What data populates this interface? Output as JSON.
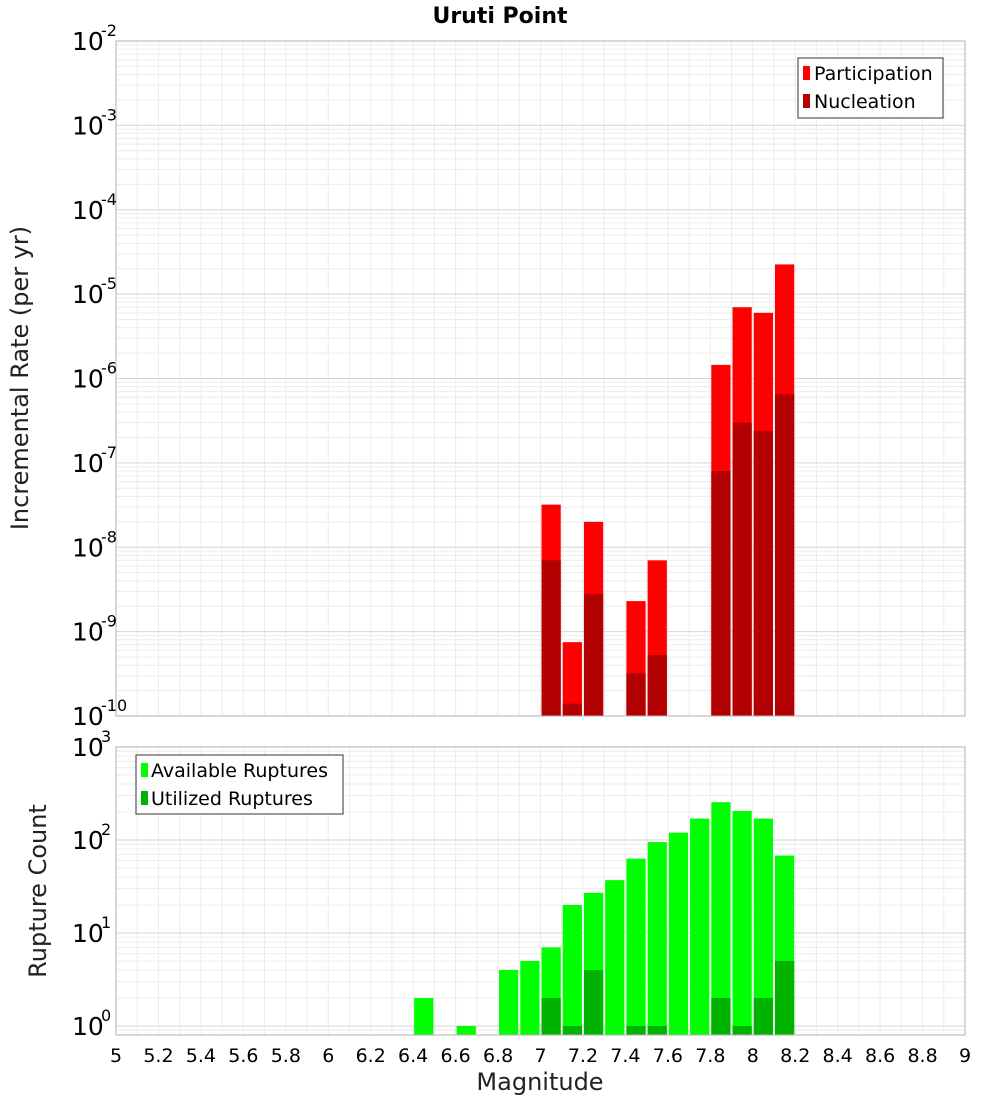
{
  "chart_data": [
    {
      "type": "bar",
      "title": "Uruti Point",
      "xlabel": "",
      "ylabel": "Incremental Rate (per yr)",
      "yscale": "log",
      "ylim": [
        1e-10,
        0.01
      ],
      "xlim": [
        5,
        9
      ],
      "grid": true,
      "legend_position": "top-right",
      "yticks": [
        {
          "base": "10",
          "exp": "-10"
        },
        {
          "base": "10",
          "exp": "-9"
        },
        {
          "base": "10",
          "exp": "-8"
        },
        {
          "base": "10",
          "exp": "-7"
        },
        {
          "base": "10",
          "exp": "-6"
        },
        {
          "base": "10",
          "exp": "-5"
        },
        {
          "base": "10",
          "exp": "-4"
        },
        {
          "base": "10",
          "exp": "-3"
        },
        {
          "base": "10",
          "exp": "-2"
        }
      ],
      "series": [
        {
          "name": "Participation",
          "color": "#ff0000",
          "points": [
            {
              "x": 7.05,
              "y": 3.2e-08
            },
            {
              "x": 7.15,
              "y": 7.5e-10
            },
            {
              "x": 7.25,
              "y": 2e-08
            },
            {
              "x": 7.45,
              "y": 2.3e-09
            },
            {
              "x": 7.55,
              "y": 7e-09
            },
            {
              "x": 7.85,
              "y": 1.45e-06
            },
            {
              "x": 7.95,
              "y": 7e-06
            },
            {
              "x": 8.05,
              "y": 6e-06
            },
            {
              "x": 8.15,
              "y": 2.25e-05
            }
          ]
        },
        {
          "name": "Nucleation",
          "color": "#b30000",
          "points": [
            {
              "x": 7.05,
              "y": 7e-09
            },
            {
              "x": 7.15,
              "y": 1.4e-10
            },
            {
              "x": 7.25,
              "y": 2.8e-09
            },
            {
              "x": 7.45,
              "y": 3.2e-10
            },
            {
              "x": 7.55,
              "y": 5.3e-10
            },
            {
              "x": 7.85,
              "y": 8e-08
            },
            {
              "x": 7.95,
              "y": 3e-07
            },
            {
              "x": 8.05,
              "y": 2.4e-07
            },
            {
              "x": 8.15,
              "y": 6.5e-07
            }
          ]
        }
      ]
    },
    {
      "type": "bar",
      "title": "",
      "xlabel": "Magnitude",
      "ylabel": "Rupture Count",
      "yscale": "log",
      "ylim": [
        0.8,
        1000
      ],
      "xlim": [
        5,
        9
      ],
      "grid": true,
      "legend_position": "top-left",
      "xticks": [
        "5",
        "5.2",
        "5.4",
        "5.6",
        "5.8",
        "6",
        "6.2",
        "6.4",
        "6.6",
        "6.8",
        "7",
        "7.2",
        "7.4",
        "7.6",
        "7.8",
        "8",
        "8.2",
        "8.4",
        "8.6",
        "8.8",
        "9"
      ],
      "yticks": [
        {
          "base": "10",
          "exp": "0"
        },
        {
          "base": "10",
          "exp": "1"
        },
        {
          "base": "10",
          "exp": "2"
        },
        {
          "base": "10",
          "exp": "3"
        }
      ],
      "series": [
        {
          "name": "Available Ruptures",
          "color": "#00ff00",
          "points": [
            {
              "x": 6.45,
              "y": 2
            },
            {
              "x": 6.65,
              "y": 1
            },
            {
              "x": 6.85,
              "y": 4
            },
            {
              "x": 6.95,
              "y": 5
            },
            {
              "x": 7.05,
              "y": 7
            },
            {
              "x": 7.15,
              "y": 20
            },
            {
              "x": 7.25,
              "y": 27
            },
            {
              "x": 7.35,
              "y": 37
            },
            {
              "x": 7.45,
              "y": 63
            },
            {
              "x": 7.55,
              "y": 95
            },
            {
              "x": 7.65,
              "y": 120
            },
            {
              "x": 7.75,
              "y": 170
            },
            {
              "x": 7.85,
              "y": 255
            },
            {
              "x": 7.95,
              "y": 205
            },
            {
              "x": 8.05,
              "y": 170
            },
            {
              "x": 8.15,
              "y": 68
            }
          ]
        },
        {
          "name": "Utilized Ruptures",
          "color": "#00b300",
          "points": [
            {
              "x": 7.05,
              "y": 2
            },
            {
              "x": 7.15,
              "y": 1
            },
            {
              "x": 7.25,
              "y": 4
            },
            {
              "x": 7.45,
              "y": 1
            },
            {
              "x": 7.55,
              "y": 1
            },
            {
              "x": 7.85,
              "y": 2
            },
            {
              "x": 7.95,
              "y": 1
            },
            {
              "x": 8.05,
              "y": 2
            },
            {
              "x": 8.15,
              "y": 5
            }
          ]
        }
      ]
    }
  ]
}
